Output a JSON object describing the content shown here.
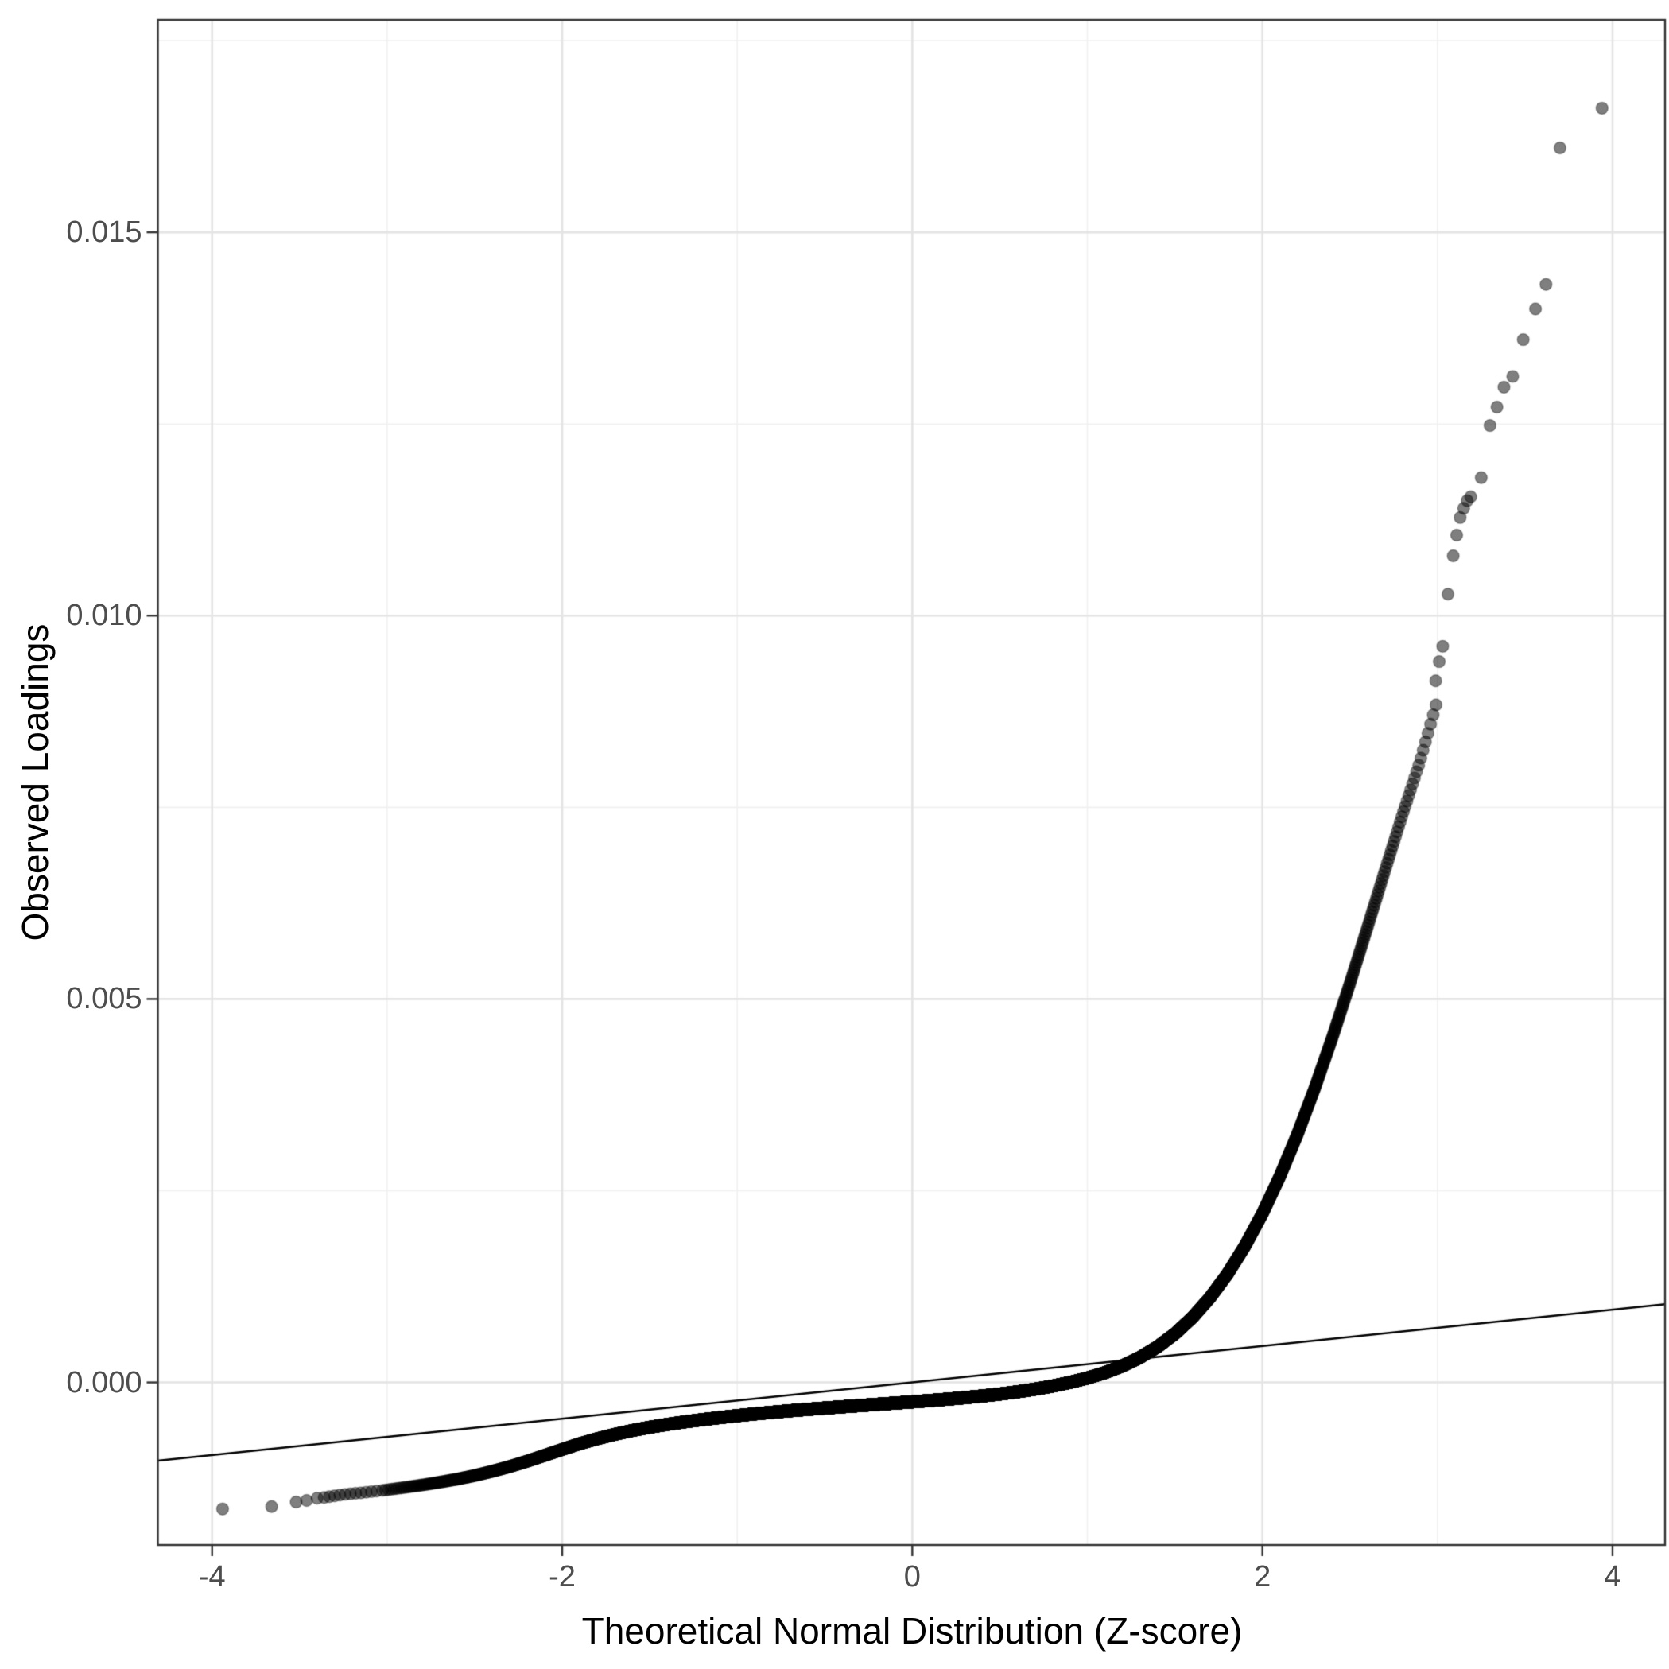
{
  "chart_data": {
    "type": "scatter",
    "chart_kind": "qq-plot",
    "title": "",
    "xlabel": "Theoretical Normal Distribution (Z-score)",
    "ylabel": "Observed Loadings",
    "xlim": [
      -4.31,
      4.3
    ],
    "ylim": [
      -0.00212,
      0.01777
    ],
    "x_tick_values": [
      -4,
      -2,
      0,
      2,
      4
    ],
    "x_tick_labels": [
      "-4",
      "-2",
      "0",
      "2",
      "4"
    ],
    "x_minor_ticks": [
      -3,
      -1,
      1,
      3
    ],
    "y_tick_values": [
      0,
      0.005,
      0.01,
      0.015
    ],
    "y_tick_labels": [
      "0.000",
      "0.005",
      "0.010",
      "0.015"
    ],
    "y_minor_ticks": [
      0.0025,
      0.0075,
      0.0125,
      0.0175
    ],
    "grid": "major+minor",
    "legend": "none",
    "reference_line": {
      "slope": 0.000237,
      "intercept": 0.0
    },
    "n_points": 13350,
    "quantile_curve": [
      [
        -3.04,
        -0.001412
      ],
      [
        -3.0,
        -0.0014
      ],
      [
        -2.9,
        -0.00137
      ],
      [
        -2.8,
        -0.001338
      ],
      [
        -2.7,
        -0.001302
      ],
      [
        -2.6,
        -0.001262
      ],
      [
        -2.5,
        -0.001215
      ],
      [
        -2.4,
        -0.00116
      ],
      [
        -2.3,
        -0.001098
      ],
      [
        -2.2,
        -0.001028
      ],
      [
        -2.1,
        -0.000952
      ],
      [
        -2.0,
        -0.000875
      ],
      [
        -1.9,
        -0.0008
      ],
      [
        -1.8,
        -0.000735
      ],
      [
        -1.7,
        -0.000678
      ],
      [
        -1.6,
        -0.000628
      ],
      [
        -1.5,
        -0.000585
      ],
      [
        -1.4,
        -0.000548
      ],
      [
        -1.3,
        -0.000515
      ],
      [
        -1.2,
        -0.000486
      ],
      [
        -1.1,
        -0.000459
      ],
      [
        -1.0,
        -0.000434
      ],
      [
        -0.9,
        -0.000411
      ],
      [
        -0.8,
        -0.00039
      ],
      [
        -0.7,
        -0.00037
      ],
      [
        -0.6,
        -0.000352
      ],
      [
        -0.5,
        -0.000335
      ],
      [
        -0.4,
        -0.000318
      ],
      [
        -0.3,
        -0.000302
      ],
      [
        -0.2,
        -0.000286
      ],
      [
        -0.1,
        -0.00027
      ],
      [
        0.0,
        -0.000254
      ],
      [
        0.1,
        -0.000237
      ],
      [
        0.2,
        -0.000219
      ],
      [
        0.3,
        -0.000199
      ],
      [
        0.4,
        -0.000177
      ],
      [
        0.5,
        -0.000152
      ],
      [
        0.6,
        -0.000123
      ],
      [
        0.7,
        -8.9e-05
      ],
      [
        0.8,
        -4.9e-05
      ],
      [
        0.9,
        -1e-06
      ],
      [
        1.0,
        5.6e-05
      ],
      [
        1.1,
        0.000126
      ],
      [
        1.2,
        0.000214
      ],
      [
        1.3,
        0.000324
      ],
      [
        1.4,
        0.000462
      ],
      [
        1.5,
        0.000634
      ],
      [
        1.6,
        0.000846
      ],
      [
        1.7,
        0.001104
      ],
      [
        1.8,
        0.001413
      ],
      [
        1.9,
        0.001778
      ],
      [
        2.0,
        0.002202
      ],
      [
        2.1,
        0.002688
      ],
      [
        2.2,
        0.003236
      ],
      [
        2.3,
        0.003843
      ],
      [
        2.4,
        0.004502
      ],
      [
        2.5,
        0.005204
      ],
      [
        2.6,
        0.005934
      ],
      [
        2.7,
        0.006674
      ],
      [
        2.8,
        0.007404
      ],
      [
        2.9,
        0.0081
      ],
      [
        3.0,
        0.0089
      ]
    ],
    "lower_tail_points": [
      [
        -3.94,
        -0.00165
      ],
      [
        -3.66,
        -0.00162
      ],
      [
        -3.52,
        -0.00156
      ],
      [
        -3.46,
        -0.00154
      ],
      [
        -3.4,
        -0.00151
      ],
      [
        -3.36,
        -0.0015
      ],
      [
        -3.33,
        -0.00149
      ],
      [
        -3.3,
        -0.00148
      ],
      [
        -3.27,
        -0.00147
      ],
      [
        -3.24,
        -0.00146
      ],
      [
        -3.21,
        -0.001452
      ],
      [
        -3.18,
        -0.001446
      ],
      [
        -3.15,
        -0.00144
      ],
      [
        -3.12,
        -0.001432
      ],
      [
        -3.09,
        -0.001424
      ],
      [
        -3.06,
        -0.001418
      ]
    ],
    "upper_tail_points": [
      [
        2.99,
        0.00915
      ],
      [
        3.01,
        0.0094
      ],
      [
        3.03,
        0.0096
      ],
      [
        3.06,
        0.01028
      ],
      [
        3.09,
        0.01078
      ],
      [
        3.11,
        0.01105
      ],
      [
        3.13,
        0.01128
      ],
      [
        3.15,
        0.0114
      ],
      [
        3.17,
        0.0115
      ],
      [
        3.19,
        0.01155
      ],
      [
        3.25,
        0.0118
      ],
      [
        3.3,
        0.01248
      ],
      [
        3.34,
        0.01272
      ],
      [
        3.38,
        0.01298
      ],
      [
        3.43,
        0.01312
      ],
      [
        3.49,
        0.0136
      ],
      [
        3.56,
        0.014
      ],
      [
        3.62,
        0.01432
      ],
      [
        3.7,
        0.0161
      ],
      [
        3.94,
        0.01662
      ]
    ]
  },
  "style": {
    "background": "#ffffff",
    "point_color": "#000000",
    "point_alpha": 0.5,
    "point_stroke": "rgba(0,0,0,0.3)",
    "grid_major_color": "#e4e4e4",
    "grid_minor_color": "#f1f1f1",
    "panel_border_color": "#333333",
    "tick_color": "#333333",
    "tick_label_color": "#4d4d4d",
    "axis_title_color": "#000000",
    "reference_line_color": "#000000"
  }
}
